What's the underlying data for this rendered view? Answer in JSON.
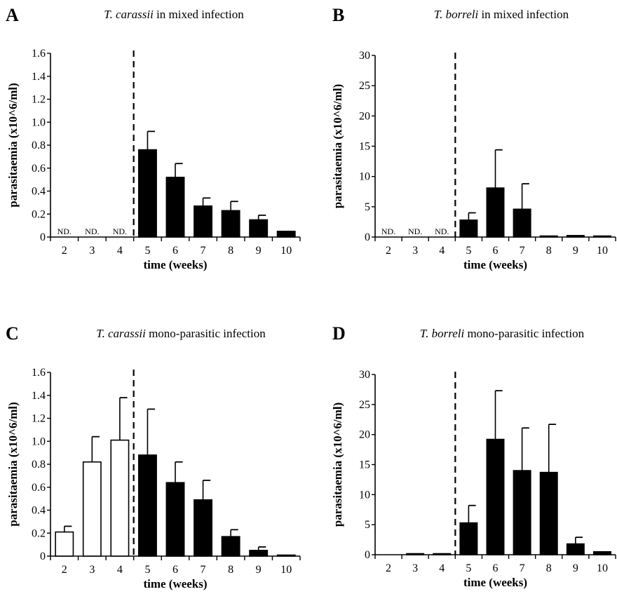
{
  "chart_data": [
    {
      "panel": "A",
      "type": "bar",
      "title_italic": "T. carassii",
      "title_rest": " in mixed infection",
      "xlabel": "time (weeks)",
      "ylabel": "parasitaemia (x10^6/ml)",
      "ylim": [
        0,
        1.6
      ],
      "yticks": [
        "0",
        "0.2",
        "0.4",
        "0.6",
        "0.8",
        "1.0",
        "1.2",
        "1.4",
        "1.6"
      ],
      "categories": [
        "2",
        "3",
        "4",
        "5",
        "6",
        "7",
        "8",
        "9",
        "10"
      ],
      "values": [
        null,
        null,
        null,
        0.76,
        0.52,
        0.27,
        0.23,
        0.15,
        0.05
      ],
      "errors": [
        null,
        null,
        null,
        0.16,
        0.12,
        0.07,
        0.08,
        0.04,
        0.0
      ],
      "fill": [
        "none",
        "none",
        "none",
        "black",
        "black",
        "black",
        "black",
        "black",
        "black"
      ],
      "annotations": [
        "ND.",
        "ND.",
        "ND.",
        "",
        "",
        "",
        "",
        "",
        ""
      ],
      "dashed_line_after_category": "4"
    },
    {
      "panel": "B",
      "type": "bar",
      "title_italic": "T. borreli",
      "title_rest": " in mixed infection",
      "xlabel": "time (weeks)",
      "ylabel": "parasitaemia (x10^6/ml)",
      "ylim": [
        0,
        30
      ],
      "yticks": [
        "0",
        "5",
        "10",
        "15",
        "20",
        "25",
        "30"
      ],
      "categories": [
        "2",
        "3",
        "4",
        "5",
        "6",
        "7",
        "8",
        "9",
        "10"
      ],
      "values": [
        null,
        null,
        null,
        2.8,
        8.1,
        4.6,
        0.1,
        0.25,
        0.05
      ],
      "errors": [
        null,
        null,
        null,
        1.2,
        6.3,
        4.2,
        0.0,
        0.0,
        0.0
      ],
      "fill": [
        "none",
        "none",
        "none",
        "black",
        "black",
        "black",
        "black",
        "black",
        "black"
      ],
      "annotations": [
        "ND.",
        "ND.",
        "ND.",
        "",
        "",
        "",
        "",
        "",
        ""
      ],
      "dashed_line_after_category": "4"
    },
    {
      "panel": "C",
      "type": "bar",
      "title_italic": "T. carassii",
      "title_rest": " mono-parasitic infection",
      "xlabel": "time (weeks)",
      "ylabel": "parasitaemia (x10^6/ml)",
      "ylim": [
        0,
        1.6
      ],
      "yticks": [
        "0",
        "0.2",
        "0.4",
        "0.6",
        "0.8",
        "1.0",
        "1.2",
        "1.4",
        "1.6"
      ],
      "categories": [
        "2",
        "3",
        "4",
        "5",
        "6",
        "7",
        "8",
        "9",
        "10"
      ],
      "values": [
        0.21,
        0.82,
        1.01,
        0.88,
        0.64,
        0.49,
        0.17,
        0.05,
        0.0
      ],
      "errors": [
        0.05,
        0.22,
        0.37,
        0.4,
        0.18,
        0.17,
        0.06,
        0.03,
        0.0
      ],
      "fill": [
        "white",
        "white",
        "white",
        "black",
        "black",
        "black",
        "black",
        "black",
        "black"
      ],
      "annotations": [
        "",
        "",
        "",
        "",
        "",
        "",
        "",
        "",
        ""
      ],
      "dashed_line_after_category": "4"
    },
    {
      "panel": "D",
      "type": "bar",
      "title_italic": "T. borreli",
      "title_rest": " mono-parasitic infection",
      "xlabel": "time (weeks)",
      "ylabel": "parasitaemia (x10^6/ml)",
      "ylim": [
        0,
        30
      ],
      "yticks": [
        "0",
        "5",
        "10",
        "15",
        "20",
        "25",
        "30"
      ],
      "categories": [
        "2",
        "3",
        "4",
        "5",
        "6",
        "7",
        "8",
        "9",
        "10"
      ],
      "values": [
        0.0,
        0.1,
        0.15,
        5.3,
        19.2,
        14.0,
        13.7,
        1.8,
        0.5
      ],
      "errors": [
        0.0,
        0.0,
        0.0,
        2.9,
        8.1,
        7.1,
        8.0,
        1.1,
        0.0
      ],
      "fill": [
        "none",
        "black",
        "black",
        "black",
        "black",
        "black",
        "black",
        "black",
        "black"
      ],
      "annotations": [
        "",
        "",
        "",
        "",
        "",
        "",
        "",
        "",
        ""
      ],
      "dashed_line_after_category": "4"
    }
  ]
}
